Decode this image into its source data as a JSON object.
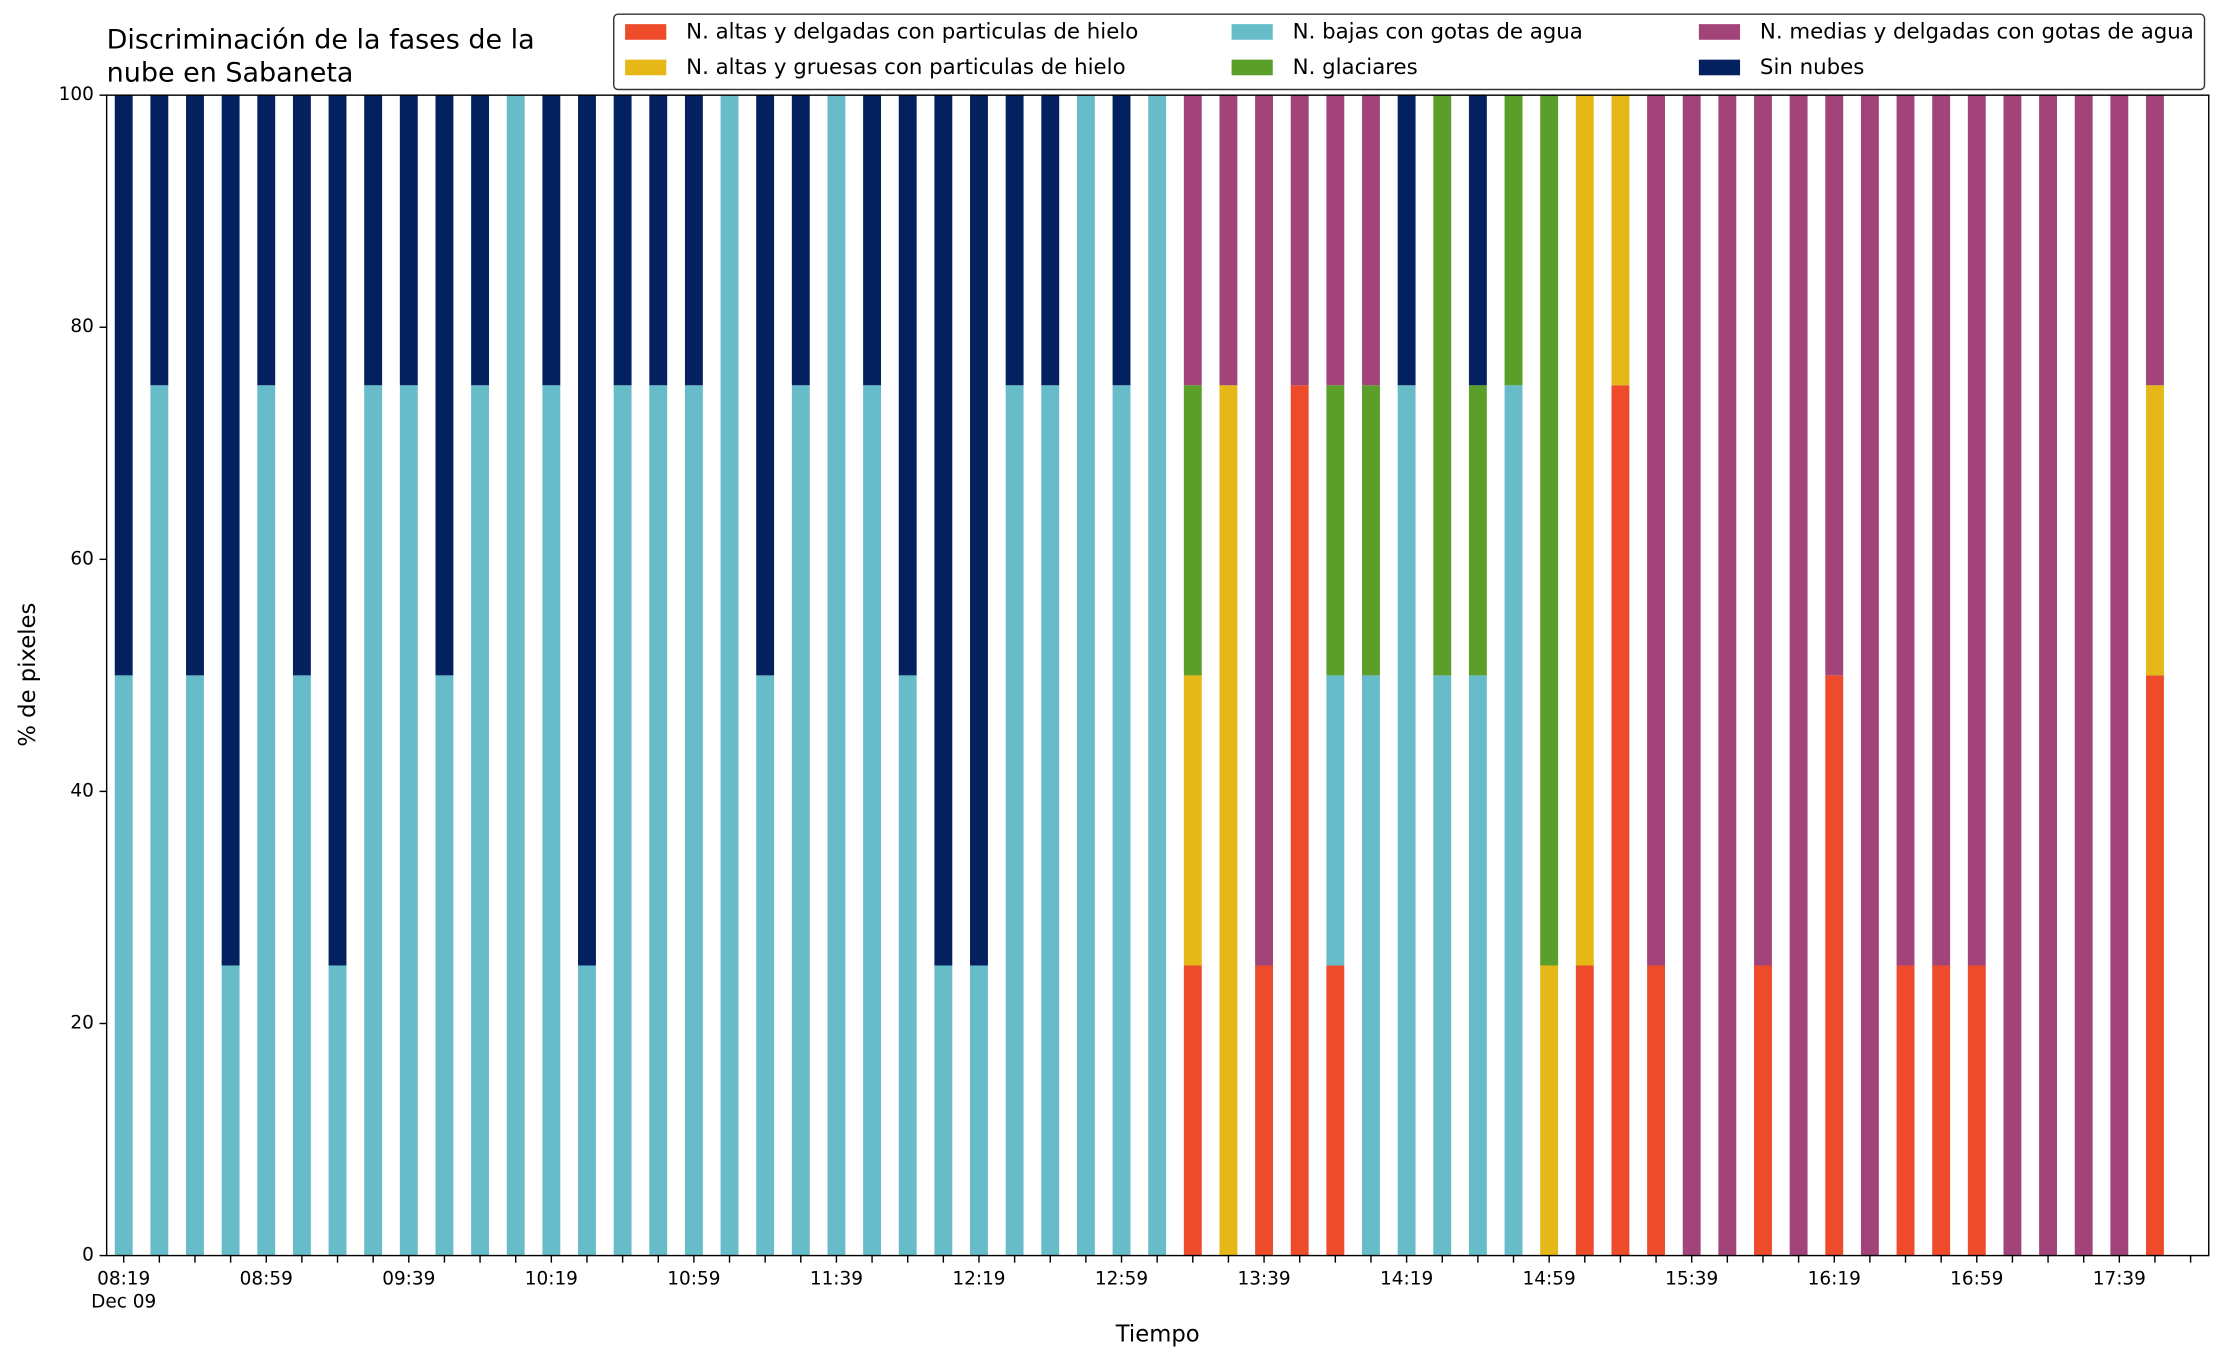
{
  "chart_data": {
    "type": "stacked_bar",
    "title": [
      "Discriminación de la fases de la",
      "nube en Sabaneta"
    ],
    "xlabel": "Tiempo",
    "ylabel": "% de pixeles",
    "date_label": "Dec 09",
    "categories": [
      "08:19",
      null,
      null,
      null,
      "08:59",
      null,
      null,
      null,
      "09:39",
      null,
      null,
      null,
      "10:19",
      null,
      null,
      null,
      "10:59",
      null,
      null,
      null,
      "11:39",
      null,
      null,
      null,
      "12:19",
      null,
      null,
      null,
      "12:59",
      null,
      null,
      null,
      "13:39",
      null,
      null,
      null,
      "14:19",
      null,
      null,
      null,
      "14:59",
      null,
      null,
      null,
      "15:39",
      null,
      null,
      null,
      "16:19",
      null,
      null,
      null,
      "16:59",
      null,
      null,
      null,
      "17:39",
      null
    ],
    "ylim": [
      0,
      100
    ],
    "yticks": [
      0,
      20,
      40,
      60,
      80,
      100
    ],
    "legend": "top-right",
    "series": [
      {
        "name": "N. altas y delgadas con particulas de hielo",
        "color": "#ee4b2b",
        "values": [
          0,
          0,
          0,
          0,
          0,
          0,
          0,
          0,
          0,
          0,
          0,
          0,
          0,
          0,
          0,
          0,
          0,
          0,
          0,
          0,
          0,
          0,
          0,
          0,
          0,
          0,
          0,
          0,
          0,
          0,
          25,
          0,
          25,
          75,
          25,
          0,
          0,
          0,
          0,
          0,
          0,
          25,
          75,
          25,
          0,
          0,
          25,
          0,
          50,
          0,
          25,
          25,
          25,
          0,
          0,
          0,
          0,
          50
        ]
      },
      {
        "name": "N. altas y gruesas con particulas de hielo",
        "color": "#e6b817",
        "values": [
          0,
          0,
          0,
          0,
          0,
          0,
          0,
          0,
          0,
          0,
          0,
          0,
          0,
          0,
          0,
          0,
          0,
          0,
          0,
          0,
          0,
          0,
          0,
          0,
          0,
          0,
          0,
          0,
          0,
          0,
          25,
          75,
          0,
          0,
          0,
          0,
          0,
          0,
          0,
          0,
          25,
          75,
          25,
          0,
          0,
          0,
          0,
          0,
          0,
          0,
          0,
          0,
          0,
          0,
          0,
          0,
          0,
          25
        ]
      },
      {
        "name": "N. bajas con gotas de agua",
        "color": "#66bdc9",
        "values": [
          50,
          75,
          50,
          25,
          75,
          50,
          25,
          75,
          75,
          50,
          75,
          100,
          75,
          25,
          75,
          75,
          75,
          100,
          50,
          75,
          100,
          75,
          50,
          25,
          25,
          75,
          75,
          100,
          75,
          100,
          0,
          0,
          0,
          0,
          25,
          50,
          75,
          50,
          50,
          75,
          0,
          0,
          0,
          0,
          0,
          0,
          0,
          0,
          0,
          0,
          0,
          0,
          0,
          0,
          0,
          0,
          0,
          0
        ]
      },
      {
        "name": "N. glaciares",
        "color": "#5b9e2a",
        "values": [
          0,
          0,
          0,
          0,
          0,
          0,
          0,
          0,
          0,
          0,
          0,
          0,
          0,
          0,
          0,
          0,
          0,
          0,
          0,
          0,
          0,
          0,
          0,
          0,
          0,
          0,
          0,
          0,
          0,
          0,
          25,
          0,
          0,
          0,
          25,
          25,
          0,
          50,
          25,
          25,
          75,
          0,
          0,
          0,
          0,
          0,
          0,
          0,
          0,
          0,
          0,
          0,
          0,
          0,
          0,
          0,
          0,
          0
        ]
      },
      {
        "name": "N. medias y delgadas con gotas de agua",
        "color": "#a2447a",
        "values": [
          0,
          0,
          0,
          0,
          0,
          0,
          0,
          0,
          0,
          0,
          0,
          0,
          0,
          0,
          0,
          0,
          0,
          0,
          0,
          0,
          0,
          0,
          0,
          0,
          0,
          0,
          0,
          0,
          0,
          0,
          25,
          25,
          75,
          25,
          25,
          25,
          0,
          0,
          0,
          0,
          0,
          0,
          0,
          75,
          100,
          100,
          75,
          100,
          50,
          100,
          75,
          75,
          75,
          100,
          100,
          100,
          100,
          25
        ]
      },
      {
        "name": "Sin nubes",
        "color": "#03215e",
        "values": [
          50,
          25,
          50,
          75,
          25,
          50,
          75,
          25,
          25,
          50,
          25,
          0,
          25,
          75,
          25,
          25,
          25,
          0,
          50,
          25,
          0,
          25,
          50,
          75,
          75,
          25,
          25,
          0,
          25,
          0,
          0,
          0,
          0,
          0,
          0,
          0,
          25,
          0,
          25,
          0,
          0,
          0,
          0,
          0,
          0,
          0,
          0,
          0,
          0,
          0,
          0,
          0,
          0,
          0,
          0,
          0,
          0,
          0
        ]
      }
    ]
  }
}
